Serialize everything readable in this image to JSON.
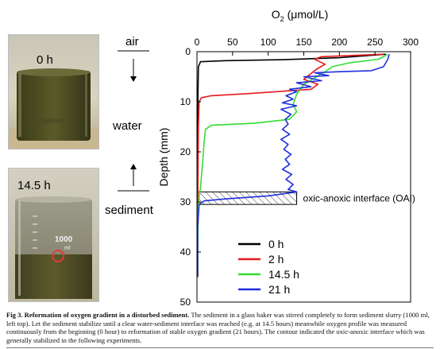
{
  "figure": {
    "photos": [
      {
        "label": "0 h"
      },
      {
        "label": "14.5 h"
      }
    ],
    "beaker_text": "1000",
    "beaker_unit": "ml",
    "side_labels": {
      "air": "air",
      "water": "water",
      "sediment": "sediment"
    },
    "oai_label": "oxic-anoxic interface (OAI)"
  },
  "chart_data": {
    "type": "line",
    "title": "",
    "xlabel": "O₂ (μmol/L)",
    "xlabel_main": "O",
    "xlabel_sub": "2",
    "xlabel_unit": "(μmol/L)",
    "ylabel": "Depth (mm)",
    "xlim": [
      0,
      300
    ],
    "ylim": [
      0,
      50
    ],
    "y_inverted": true,
    "x_axis_position": "top",
    "xticks": [
      0,
      50,
      100,
      150,
      200,
      250,
      300
    ],
    "yticks": [
      0,
      10,
      20,
      30,
      40,
      50
    ],
    "legend_position": "bottom-right",
    "oai_band": {
      "x": [
        0,
        140
      ],
      "y": [
        28,
        30.5
      ]
    },
    "series": [
      {
        "name": "0 h",
        "color": "#000000",
        "points": [
          [
            265,
            0.5
          ],
          [
            200,
            1.2
          ],
          [
            120,
            1.6
          ],
          [
            40,
            1.8
          ],
          [
            5,
            2.0
          ],
          [
            2,
            3
          ],
          [
            1.5,
            8
          ],
          [
            1,
            15
          ],
          [
            1,
            25
          ],
          [
            1,
            35
          ],
          [
            1,
            45
          ]
        ]
      },
      {
        "name": "2 h",
        "color": "#e41a1c",
        "points": [
          [
            262,
            0.5
          ],
          [
            175,
            1.0
          ],
          [
            165,
            1.5
          ],
          [
            180,
            2.5
          ],
          [
            168,
            3.5
          ],
          [
            150,
            5.5
          ],
          [
            170,
            6.5
          ],
          [
            160,
            7.5
          ],
          [
            80,
            8.3
          ],
          [
            20,
            8.8
          ],
          [
            6,
            9.2
          ],
          [
            3,
            10
          ],
          [
            2,
            15
          ],
          [
            1.5,
            25
          ],
          [
            1,
            35
          ],
          [
            1,
            45
          ]
        ]
      },
      {
        "name": "14.5 h",
        "color": "#33dd33",
        "points": [
          [
            268,
            0.5
          ],
          [
            255,
            1.5
          ],
          [
            215,
            2.2
          ],
          [
            190,
            3.0
          ],
          [
            180,
            4.0
          ],
          [
            150,
            6.5
          ],
          [
            140,
            8.5
          ],
          [
            135,
            10.5
          ],
          [
            140,
            12.0
          ],
          [
            130,
            13.5
          ],
          [
            80,
            14.3
          ],
          [
            20,
            14.7
          ],
          [
            12,
            15.5
          ],
          [
            10,
            18
          ],
          [
            8,
            22
          ],
          [
            5,
            27
          ],
          [
            3,
            29
          ],
          [
            2,
            31
          ],
          [
            1.5,
            35
          ],
          [
            1,
            45
          ]
        ]
      },
      {
        "name": "21 h",
        "color": "#1f2fdd",
        "points": [
          [
            270,
            0.5
          ],
          [
            268,
            1.5
          ],
          [
            262,
            3.0
          ],
          [
            245,
            3.8
          ],
          [
            200,
            4.0
          ],
          [
            165,
            4.2
          ],
          [
            185,
            4.8
          ],
          [
            150,
            5.0
          ],
          [
            175,
            5.8
          ],
          [
            140,
            6.2
          ],
          [
            160,
            7.0
          ],
          [
            130,
            7.5
          ],
          [
            140,
            8.0
          ],
          [
            125,
            8.8
          ],
          [
            135,
            9.5
          ],
          [
            120,
            10.2
          ],
          [
            140,
            10.8
          ],
          [
            118,
            11.5
          ],
          [
            132,
            12.5
          ],
          [
            124,
            13.5
          ],
          [
            128,
            14.5
          ],
          [
            120,
            15.5
          ],
          [
            130,
            16.5
          ],
          [
            118,
            17.5
          ],
          [
            128,
            18.5
          ],
          [
            122,
            19.5
          ],
          [
            132,
            20.5
          ],
          [
            124,
            21.5
          ],
          [
            130,
            22.5
          ],
          [
            120,
            23.5
          ],
          [
            133,
            24.5
          ],
          [
            125,
            25.5
          ],
          [
            135,
            26.5
          ],
          [
            128,
            27.5
          ],
          [
            140,
            28.0
          ],
          [
            100,
            28.8
          ],
          [
            40,
            29.4
          ],
          [
            10,
            29.8
          ],
          [
            3,
            30.5
          ],
          [
            1,
            35
          ],
          [
            1,
            45
          ]
        ]
      }
    ]
  },
  "caption": {
    "fig_label": "Fig 3. Reformation of oxygen gradient in a disturbed sediment.",
    "body": "The sediment in a glass baker was stirred completely to form sediment slurry (1000 ml, left top). Let the sediment stabilize until a clear water-sediment interface was reached (e.g. at 14.5 hours) meanwhile oxygen profile was measured continuously from the beginning (0 hour) to reformation of stable oxygen gradient (21 hours). The contour indicated the oxic-anoxic interface which was generally stabilized in the following experiments."
  }
}
